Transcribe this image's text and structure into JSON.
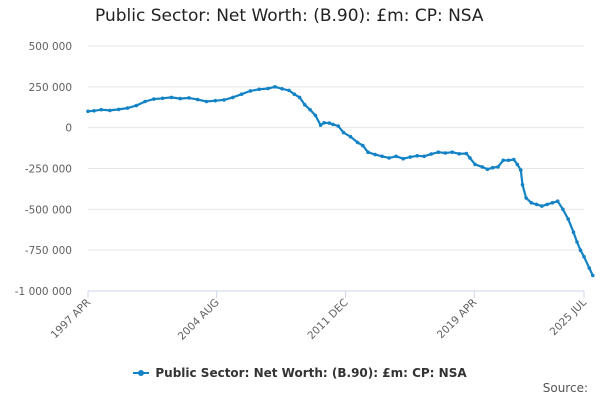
{
  "chart_data": {
    "type": "line",
    "title": "Public Sector: Net Worth: (B.90): £m: CP: NSA",
    "xlabel": "",
    "ylabel": "",
    "ylim": [
      -1000000,
      500000
    ],
    "y_ticks": [
      500000,
      250000,
      0,
      -250000,
      -500000,
      -750000,
      -1000000
    ],
    "y_tick_labels": [
      "500 000",
      "250 000",
      "0",
      "-250 000",
      "-500 000",
      "-750 000",
      "-1 000 000"
    ],
    "x_ticks": [
      {
        "label": "1997 APR",
        "t": 1997.25
      },
      {
        "label": "2004 AUG",
        "t": 2004.58
      },
      {
        "label": "2011 DEC",
        "t": 2011.92
      },
      {
        "label": "2019 APR",
        "t": 2019.25
      },
      {
        "label": "2025 JUL",
        "t": 2025.5
      }
    ],
    "xlim": [
      1997.25,
      2025.5
    ],
    "grid": true,
    "legend_position": "bottom",
    "series": [
      {
        "name": "Public Sector: Net Worth: (B.90): £m: CP: NSA",
        "color": "#1483c6",
        "points": [
          [
            1997.25,
            100000
          ],
          [
            1997.6,
            103000
          ],
          [
            1998.0,
            110000
          ],
          [
            1998.5,
            106000
          ],
          [
            1999.0,
            112000
          ],
          [
            1999.5,
            120000
          ],
          [
            2000.0,
            135000
          ],
          [
            2000.5,
            160000
          ],
          [
            2001.0,
            175000
          ],
          [
            2001.5,
            180000
          ],
          [
            2002.0,
            185000
          ],
          [
            2002.5,
            178000
          ],
          [
            2003.0,
            182000
          ],
          [
            2003.5,
            172000
          ],
          [
            2004.0,
            160000
          ],
          [
            2004.5,
            165000
          ],
          [
            2005.0,
            170000
          ],
          [
            2005.5,
            185000
          ],
          [
            2006.0,
            205000
          ],
          [
            2006.5,
            225000
          ],
          [
            2007.0,
            235000
          ],
          [
            2007.5,
            240000
          ],
          [
            2007.9,
            250000
          ],
          [
            2008.3,
            238000
          ],
          [
            2008.7,
            228000
          ],
          [
            2009.0,
            205000
          ],
          [
            2009.3,
            185000
          ],
          [
            2009.6,
            140000
          ],
          [
            2009.9,
            110000
          ],
          [
            2010.2,
            75000
          ],
          [
            2010.5,
            15000
          ],
          [
            2010.7,
            30000
          ],
          [
            2011.0,
            28000
          ],
          [
            2011.2,
            20000
          ],
          [
            2011.5,
            10000
          ],
          [
            2011.8,
            -30000
          ],
          [
            2012.2,
            -55000
          ],
          [
            2012.6,
            -90000
          ],
          [
            2012.9,
            -110000
          ],
          [
            2013.2,
            -150000
          ],
          [
            2013.6,
            -165000
          ],
          [
            2014.0,
            -175000
          ],
          [
            2014.4,
            -185000
          ],
          [
            2014.8,
            -175000
          ],
          [
            2015.2,
            -190000
          ],
          [
            2015.6,
            -180000
          ],
          [
            2016.0,
            -172000
          ],
          [
            2016.4,
            -175000
          ],
          [
            2016.8,
            -162000
          ],
          [
            2017.2,
            -150000
          ],
          [
            2017.6,
            -155000
          ],
          [
            2018.0,
            -150000
          ],
          [
            2018.4,
            -160000
          ],
          [
            2018.8,
            -158000
          ],
          [
            2019.0,
            -185000
          ],
          [
            2019.3,
            -225000
          ],
          [
            2019.7,
            -240000
          ],
          [
            2020.0,
            -255000
          ],
          [
            2020.3,
            -245000
          ],
          [
            2020.6,
            -240000
          ],
          [
            2020.9,
            -200000
          ],
          [
            2021.2,
            -200000
          ],
          [
            2021.5,
            -195000
          ],
          [
            2021.7,
            -225000
          ],
          [
            2021.9,
            -260000
          ],
          [
            2022.0,
            -350000
          ],
          [
            2022.2,
            -430000
          ],
          [
            2022.5,
            -460000
          ],
          [
            2022.8,
            -470000
          ],
          [
            2023.1,
            -480000
          ],
          [
            2023.4,
            -470000
          ],
          [
            2023.7,
            -460000
          ],
          [
            2024.0,
            -450000
          ],
          [
            2024.3,
            -500000
          ],
          [
            2024.6,
            -560000
          ],
          [
            2024.9,
            -640000
          ],
          [
            2025.1,
            -700000
          ],
          [
            2025.3,
            -750000
          ],
          [
            2025.5,
            -790000
          ],
          [
            2025.8,
            -860000
          ],
          [
            2026.0,
            -905000
          ]
        ]
      }
    ]
  },
  "legend": {
    "label": "Public Sector: Net Worth: (B.90): £m: CP: NSA"
  },
  "source": {
    "label": "Source:"
  }
}
